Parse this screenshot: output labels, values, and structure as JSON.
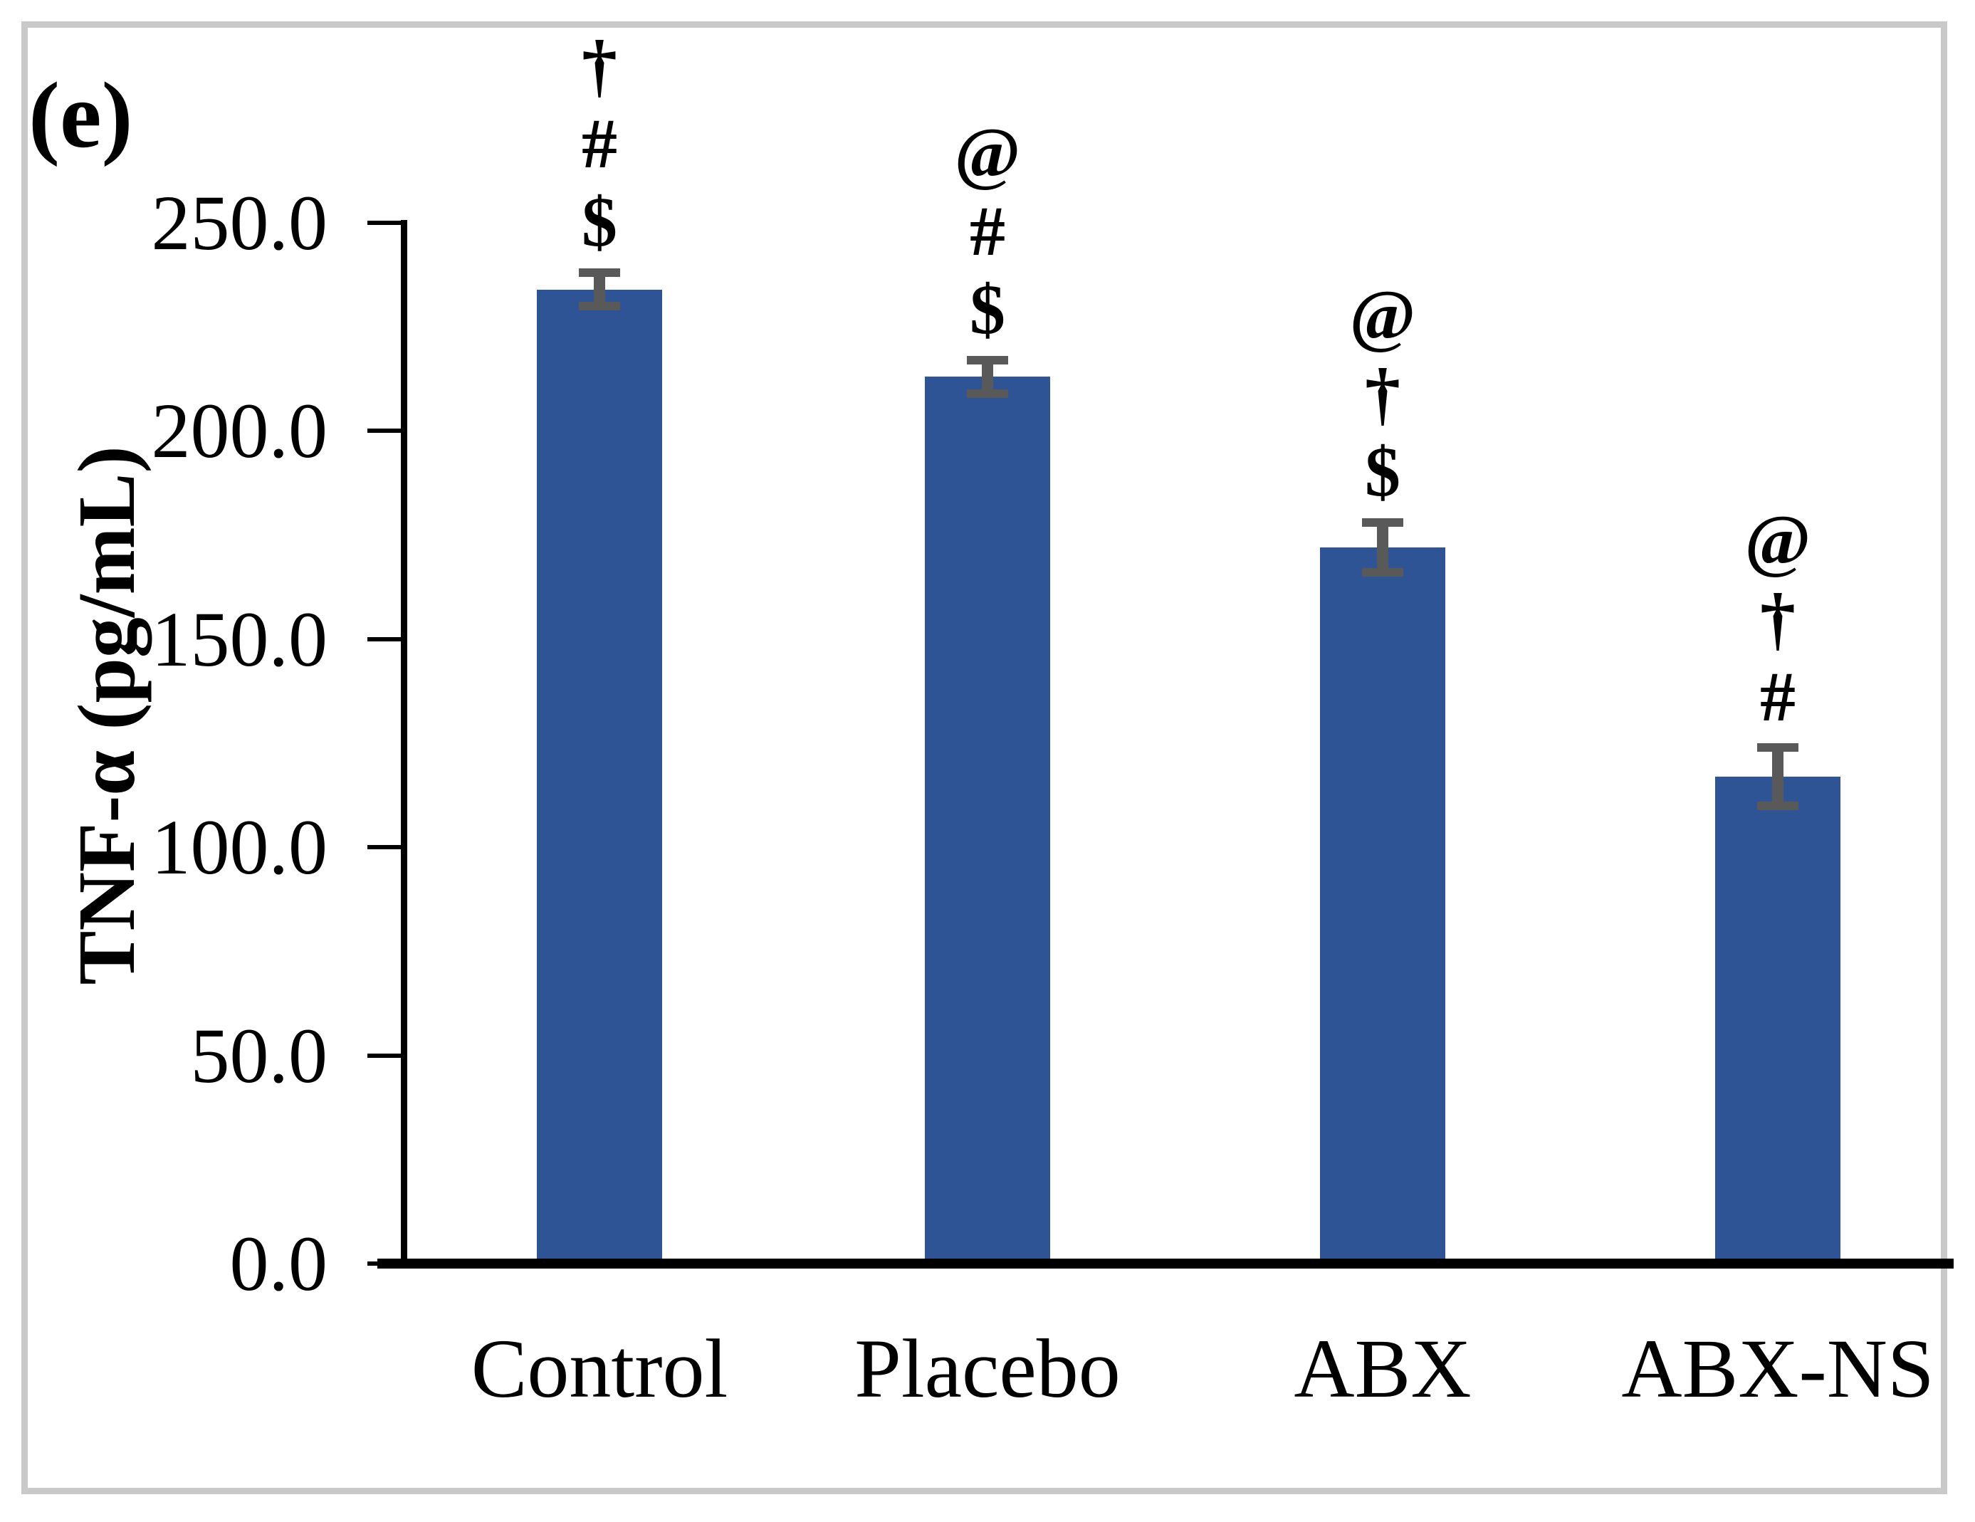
{
  "figure": {
    "panel_label": "(e)"
  },
  "chart_data": {
    "type": "bar",
    "title": "",
    "ylabel": "TNF-α (pg/mL)",
    "xlabel": "",
    "categories": [
      "Control",
      "Placebo",
      "ABX",
      "ABX-NS"
    ],
    "values": [
      234,
      213,
      172,
      117
    ],
    "errors": [
      4,
      4,
      6,
      7
    ],
    "significance_markers": [
      [
        "†",
        "#",
        "$"
      ],
      [
        "@",
        "#",
        "$"
      ],
      [
        "@",
        "†",
        "$"
      ],
      [
        "@",
        "†",
        "#"
      ]
    ],
    "yticks": [
      "250.0",
      "200.0",
      "150.0",
      "100.0",
      "50.0",
      "0.0"
    ],
    "ytick_values": [
      250,
      200,
      150,
      100,
      50,
      0
    ],
    "ylim": [
      0,
      250
    ],
    "grid": false,
    "legend": "none",
    "bar_color": "#2F5496",
    "error_bar_color": "#595959",
    "axis_color": "#000000",
    "border_color": "#C9C9C9"
  }
}
